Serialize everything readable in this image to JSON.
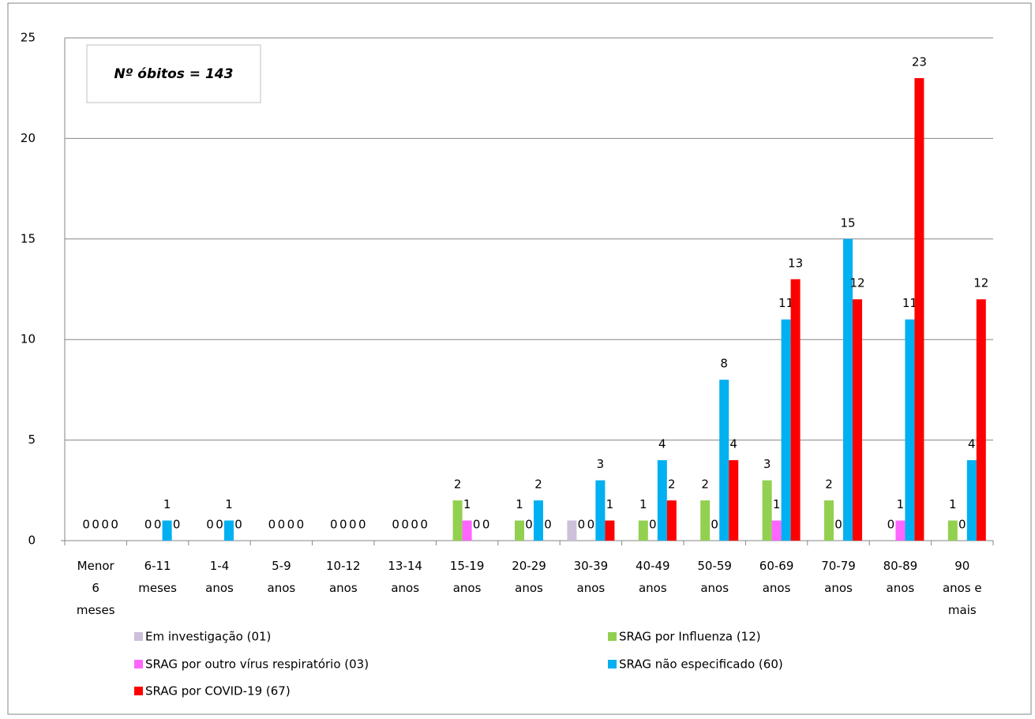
{
  "chart_data": {
    "type": "bar",
    "annotation": "Nº óbitos = 143",
    "categories": [
      "Menor\n6\nmeses",
      "6-11\nmeses",
      "1-4\nanos",
      "5-9\nanos",
      "10-12\nanos",
      "13-14\nanos",
      "15-19\nanos",
      "20-29\nanos",
      "30-39\nanos",
      "40-49\nanos",
      "50-59\nanos",
      "60-69\nanos",
      "70-79\nanos",
      "80-89\nanos",
      "90\nanos e\nmais"
    ],
    "series": [
      {
        "name": "Em investigação (01)",
        "color": "#ccc0da",
        "values": [
          0,
          0,
          0,
          0,
          0,
          0,
          0,
          0,
          1,
          0,
          0,
          0,
          0,
          0,
          0
        ]
      },
      {
        "name": "SRAG por Influenza (12)",
        "color": "#92d050",
        "values": [
          0,
          0,
          0,
          0,
          0,
          0,
          2,
          1,
          0,
          1,
          2,
          3,
          2,
          0,
          1
        ]
      },
      {
        "name": "SRAG por outro vírus respiratório (03)",
        "color": "#ff66ff",
        "values": [
          0,
          0,
          0,
          0,
          0,
          0,
          1,
          0,
          0,
          0,
          0,
          1,
          0,
          1,
          0
        ]
      },
      {
        "name": "SRAG não especificado (60)",
        "color": "#00b0f0",
        "values": [
          0,
          1,
          1,
          0,
          0,
          0,
          0,
          2,
          3,
          4,
          8,
          11,
          15,
          11,
          4
        ]
      },
      {
        "name": "SRAG por COVID-19 (67)",
        "color": "#ff0000",
        "values": [
          0,
          0,
          0,
          0,
          0,
          0,
          0,
          0,
          1,
          2,
          4,
          13,
          12,
          23,
          12
        ]
      }
    ],
    "ylim": [
      0,
      25
    ],
    "yticks": [
      0,
      5,
      10,
      15,
      20,
      25
    ],
    "grid": true
  }
}
